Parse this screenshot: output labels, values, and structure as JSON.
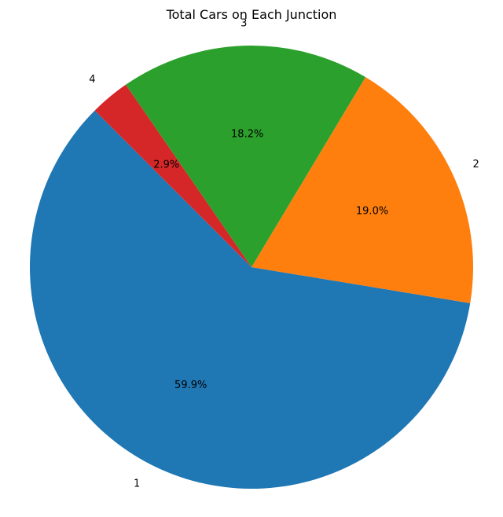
{
  "chart_data": {
    "type": "pie",
    "title": "Total Cars on Each Junction",
    "start_angle_deg": 135,
    "direction": "counterclockwise",
    "slices": [
      {
        "label": "1",
        "value": 59.9,
        "pct_label": "59.9%",
        "color": "#1f77b4"
      },
      {
        "label": "2",
        "value": 19.0,
        "pct_label": "19.0%",
        "color": "#ff7f0e"
      },
      {
        "label": "3",
        "value": 18.2,
        "pct_label": "18.2%",
        "color": "#2ca02c"
      },
      {
        "label": "4",
        "value": 2.9,
        "pct_label": "2.9%",
        "color": "#d62728"
      }
    ]
  }
}
